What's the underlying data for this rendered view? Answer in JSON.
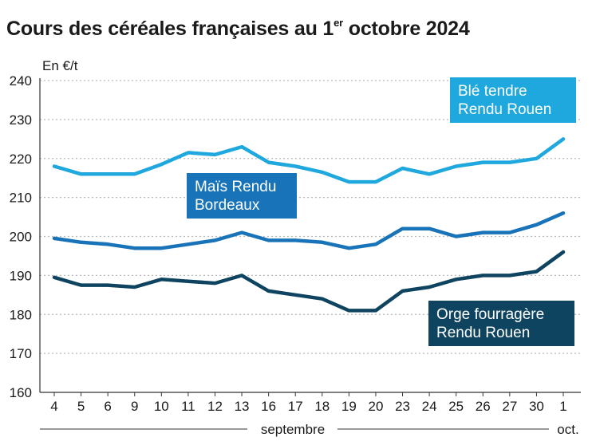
{
  "title": {
    "main": "Cours des céréales françaises au 1",
    "superscript": "er",
    "rest": " octobre 2024"
  },
  "chart_data": {
    "type": "line",
    "ylabel": "En €/t",
    "ylim": [
      160,
      240
    ],
    "yticks": [
      160,
      170,
      180,
      190,
      200,
      210,
      220,
      230,
      240
    ],
    "grid": "horizontal-dotted",
    "legend": "inline-labels",
    "categories": [
      "4",
      "5",
      "6",
      "9",
      "10",
      "11",
      "12",
      "13",
      "16",
      "17",
      "18",
      "19",
      "20",
      "23",
      "24",
      "25",
      "26",
      "27",
      "30",
      "1"
    ],
    "month_labels": [
      {
        "text": "septembre",
        "from": "4",
        "to": "30"
      },
      {
        "text": "oct.",
        "from": "1",
        "to": "1"
      }
    ],
    "series": [
      {
        "name": "Blé tendre Rendu Rouen",
        "label_lines": [
          "Blé tendre",
          "Rendu Rouen"
        ],
        "color": "#1ea8dd",
        "values": [
          218,
          216,
          216,
          216,
          218.5,
          221.5,
          221,
          223,
          219,
          218,
          216.5,
          214,
          214,
          217.5,
          216,
          218,
          219,
          219,
          220,
          225
        ]
      },
      {
        "name": "Maïs Rendu Bordeaux",
        "label_lines": [
          "Maïs Rendu",
          "Bordeaux"
        ],
        "color": "#1873b8",
        "values": [
          199.5,
          198.5,
          198,
          197,
          197,
          198,
          199,
          201,
          199,
          199,
          198.5,
          197,
          198,
          202,
          202,
          200,
          201,
          201,
          203,
          206
        ]
      },
      {
        "name": "Orge fourragère Rendu Rouen",
        "label_lines": [
          "Orge fourragère",
          "Rendu Rouen"
        ],
        "color": "#0f4461",
        "values": [
          189.5,
          187.5,
          187.5,
          187,
          189,
          188.5,
          188,
          190,
          186,
          185,
          184,
          181,
          181,
          186,
          187,
          189,
          190,
          190,
          191,
          196
        ]
      }
    ]
  }
}
